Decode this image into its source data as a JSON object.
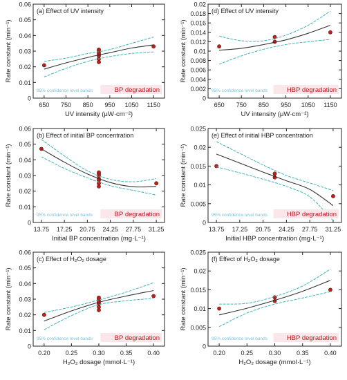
{
  "chart_data": [
    {
      "type": "scatter",
      "title": "(a) Effect of UV intensity",
      "xlabel": "UV intensity (μW·cm⁻²)",
      "ylabel": "Rate constant (min⁻¹)",
      "xlim": [
        600,
        1200
      ],
      "ylim": [
        0,
        0.06
      ],
      "xticks": [
        "650",
        "750",
        "850",
        "950",
        "1050",
        "1150"
      ],
      "yticks": [
        "0",
        "0.01",
        "0.02",
        "0.03",
        "0.04",
        "0.05",
        "0.06"
      ],
      "series": [
        {
          "kind": "points",
          "x": [
            650,
            900,
            900,
            900,
            900,
            900,
            900,
            900,
            1150
          ],
          "y": [
            0.021,
            0.023,
            0.025,
            0.027,
            0.028,
            0.029,
            0.03,
            0.031,
            0.033
          ]
        },
        {
          "kind": "fit",
          "x": [
            650,
            750,
            850,
            950,
            1050,
            1150
          ],
          "y": [
            0.0185,
            0.0225,
            0.026,
            0.029,
            0.032,
            0.034
          ]
        },
        {
          "kind": "upper-band",
          "x": [
            650,
            750,
            850,
            950,
            1050,
            1150
          ],
          "y": [
            0.0235,
            0.0255,
            0.0285,
            0.031,
            0.035,
            0.039
          ]
        },
        {
          "kind": "lower-band",
          "x": [
            650,
            750,
            850,
            950,
            1050,
            1150
          ],
          "y": [
            0.0135,
            0.019,
            0.0235,
            0.0265,
            0.0285,
            0.0295
          ]
        }
      ],
      "band_note": "95% confidence level bands",
      "annotation": "BP degradation"
    },
    {
      "type": "scatter",
      "title": "(d) Effect of UV intensity",
      "xlabel": "UV intensity (μW·cm⁻²)",
      "ylabel": "Rate constant (min⁻¹)",
      "xlim": [
        600,
        1200
      ],
      "ylim": [
        0,
        0.02
      ],
      "xticks": [
        "650",
        "750",
        "850",
        "950",
        "1050",
        "1150"
      ],
      "yticks": [
        "0",
        "0.002",
        "0.004",
        "0.006",
        "0.008",
        "0.01",
        "0.012",
        "0.014",
        "0.016",
        "0.018",
        "0.02"
      ],
      "series": [
        {
          "kind": "points",
          "x": [
            650,
            900,
            900,
            1150
          ],
          "y": [
            0.011,
            0.012,
            0.013,
            0.014
          ]
        },
        {
          "kind": "fit",
          "x": [
            650,
            750,
            850,
            950,
            1050,
            1150
          ],
          "y": [
            0.0102,
            0.0106,
            0.0114,
            0.0124,
            0.0138,
            0.0155
          ]
        },
        {
          "kind": "upper-band",
          "x": [
            650,
            750,
            850,
            950,
            1050,
            1150
          ],
          "y": [
            0.0132,
            0.0122,
            0.0122,
            0.0134,
            0.0155,
            0.0185
          ]
        },
        {
          "kind": "lower-band",
          "x": [
            650,
            750,
            850,
            950,
            1050,
            1150
          ],
          "y": [
            0.0072,
            0.009,
            0.0104,
            0.0114,
            0.012,
            0.0125
          ]
        }
      ],
      "band_note": "95% confidence level bands",
      "annotation": "HBP degradation"
    },
    {
      "type": "scatter",
      "title": "(b) Effect of initial BP concentration",
      "xlabel": "Initial BP concentration (mg·L⁻¹)",
      "ylabel": "Rate constant (min⁻¹)",
      "xlim": [
        12.5,
        32.5
      ],
      "ylim": [
        0,
        0.06
      ],
      "xticks": [
        "13.75",
        "17.25",
        "20.75",
        "24.25",
        "27.75",
        "31.25"
      ],
      "yticks": [
        "0",
        "0.01",
        "0.02",
        "0.03",
        "0.04",
        "0.05",
        "0.06"
      ],
      "series": [
        {
          "kind": "points",
          "x": [
            13.75,
            22.5,
            22.5,
            22.5,
            22.5,
            22.5,
            22.5,
            22.5,
            31.25
          ],
          "y": [
            0.047,
            0.023,
            0.025,
            0.027,
            0.028,
            0.03,
            0.031,
            0.032,
            0.025
          ]
        },
        {
          "kind": "fit",
          "x": [
            13.75,
            17.25,
            20.75,
            24.25,
            27.75,
            31.25
          ],
          "y": [
            0.047,
            0.0385,
            0.031,
            0.0255,
            0.0228,
            0.023
          ]
        },
        {
          "kind": "upper-band",
          "x": [
            13.75,
            17.25,
            20.75,
            24.25,
            27.75,
            31.25
          ],
          "y": [
            0.053,
            0.0425,
            0.033,
            0.0275,
            0.026,
            0.028
          ]
        },
        {
          "kind": "lower-band",
          "x": [
            13.75,
            17.25,
            20.75,
            24.25,
            27.75,
            31.25
          ],
          "y": [
            0.042,
            0.0345,
            0.0285,
            0.0235,
            0.0205,
            0.0175
          ]
        }
      ],
      "band_note": "95% confidence level bands",
      "annotation": "BP degradation"
    },
    {
      "type": "scatter",
      "title": "(e) Effect of initial HBP concentration",
      "xlabel": "Initial HBP concentration (mg·L⁻¹)",
      "ylabel": "Rate constant (min⁻¹)",
      "xlim": [
        12.5,
        32.5
      ],
      "ylim": [
        0,
        0.025
      ],
      "xticks": [
        "13.75",
        "17.25",
        "20.75",
        "24.25",
        "27.75",
        "31.25"
      ],
      "yticks": [
        "0",
        "0.005",
        "0.01",
        "0.015",
        "0.02",
        "0.025"
      ],
      "series": [
        {
          "kind": "points",
          "x": [
            13.75,
            22.5,
            22.5,
            31.25
          ],
          "y": [
            0.015,
            0.012,
            0.013,
            0.007
          ]
        },
        {
          "kind": "fit",
          "x": [
            13.75,
            17.25,
            20.75,
            24.25,
            27.75,
            31.25
          ],
          "y": [
            0.0182,
            0.0158,
            0.0134,
            0.0111,
            0.0088,
            0.0045
          ]
        },
        {
          "kind": "upper-band",
          "x": [
            13.75,
            17.25,
            20.75,
            24.25,
            27.75,
            31.25
          ],
          "y": [
            0.0215,
            0.0184,
            0.0153,
            0.0125,
            0.0105,
            0.0085
          ]
        },
        {
          "kind": "lower-band",
          "x": [
            13.75,
            17.25,
            20.75,
            24.25,
            27.75,
            31.25
          ],
          "y": [
            0.0148,
            0.0132,
            0.0115,
            0.0096,
            0.0068,
            0.0005
          ]
        }
      ],
      "band_note": "95% confidence level bands",
      "annotation": "HBP degradation"
    },
    {
      "type": "scatter",
      "title": "(c) Effect of H₂O₂ dosage",
      "xlabel": "H₂O₂ dosage (mmol·L⁻¹)",
      "ylabel": "Rate constant (min⁻¹)",
      "xlim": [
        0.18,
        0.42
      ],
      "ylim": [
        0,
        0.06
      ],
      "xticks": [
        "0.20",
        "0.25",
        "0.30",
        "0.35",
        "0.40"
      ],
      "yticks": [
        "0",
        "0.01",
        "0.02",
        "0.03",
        "0.04",
        "0.05",
        "0.06"
      ],
      "series": [
        {
          "kind": "points",
          "x": [
            0.2,
            0.3,
            0.3,
            0.3,
            0.3,
            0.3,
            0.3,
            0.3,
            0.4
          ],
          "y": [
            0.02,
            0.023,
            0.025,
            0.027,
            0.028,
            0.029,
            0.03,
            0.031,
            0.032
          ]
        },
        {
          "kind": "fit",
          "x": [
            0.2,
            0.25,
            0.3,
            0.35,
            0.4
          ],
          "y": [
            0.016,
            0.0225,
            0.028,
            0.032,
            0.0355
          ]
        },
        {
          "kind": "upper-band",
          "x": [
            0.2,
            0.25,
            0.3,
            0.35,
            0.4
          ],
          "y": [
            0.0215,
            0.025,
            0.0295,
            0.0345,
            0.0405
          ]
        },
        {
          "kind": "lower-band",
          "x": [
            0.2,
            0.25,
            0.3,
            0.35,
            0.4
          ],
          "y": [
            0.0105,
            0.0195,
            0.0265,
            0.029,
            0.0305
          ]
        }
      ],
      "band_note": "95% confidence level bands",
      "annotation": "BP degradation"
    },
    {
      "type": "scatter",
      "title": "(f) Effect of H₂O₂ dosage",
      "xlabel": "H₂O₂ dosage (mmol·L⁻¹)",
      "ylabel": "Rate constant (min⁻¹)",
      "xlim": [
        0.18,
        0.42
      ],
      "ylim": [
        0,
        0.025
      ],
      "xticks": [
        "0.20",
        "0.25",
        "0.30",
        "0.35",
        "0.40"
      ],
      "yticks": [
        "0",
        "0.005",
        "0.01",
        "0.015",
        "0.02",
        "0.025"
      ],
      "series": [
        {
          "kind": "points",
          "x": [
            0.2,
            0.3,
            0.3,
            0.4
          ],
          "y": [
            0.01,
            0.012,
            0.013,
            0.015
          ]
        },
        {
          "kind": "fit",
          "x": [
            0.2,
            0.25,
            0.3,
            0.35,
            0.4
          ],
          "y": [
            0.0083,
            0.0101,
            0.0122,
            0.0146,
            0.0175
          ]
        },
        {
          "kind": "upper-band",
          "x": [
            0.2,
            0.25,
            0.3,
            0.35,
            0.4
          ],
          "y": [
            0.0112,
            0.0114,
            0.0132,
            0.016,
            0.0205
          ]
        },
        {
          "kind": "lower-band",
          "x": [
            0.2,
            0.25,
            0.3,
            0.35,
            0.4
          ],
          "y": [
            0.0052,
            0.0088,
            0.0112,
            0.0128,
            0.0145
          ]
        }
      ],
      "band_note": "95% confidence level bands",
      "annotation": "HBP degradation"
    }
  ],
  "colors": {
    "point": "#b8231c",
    "point_edge": "#6d100b",
    "fit": "#333333",
    "band": "#3fb3b8",
    "band_note": "#7ac4d6",
    "annotation": "#c4161c",
    "annotation_bg": "#fbe6ea",
    "axis": "#222222"
  }
}
